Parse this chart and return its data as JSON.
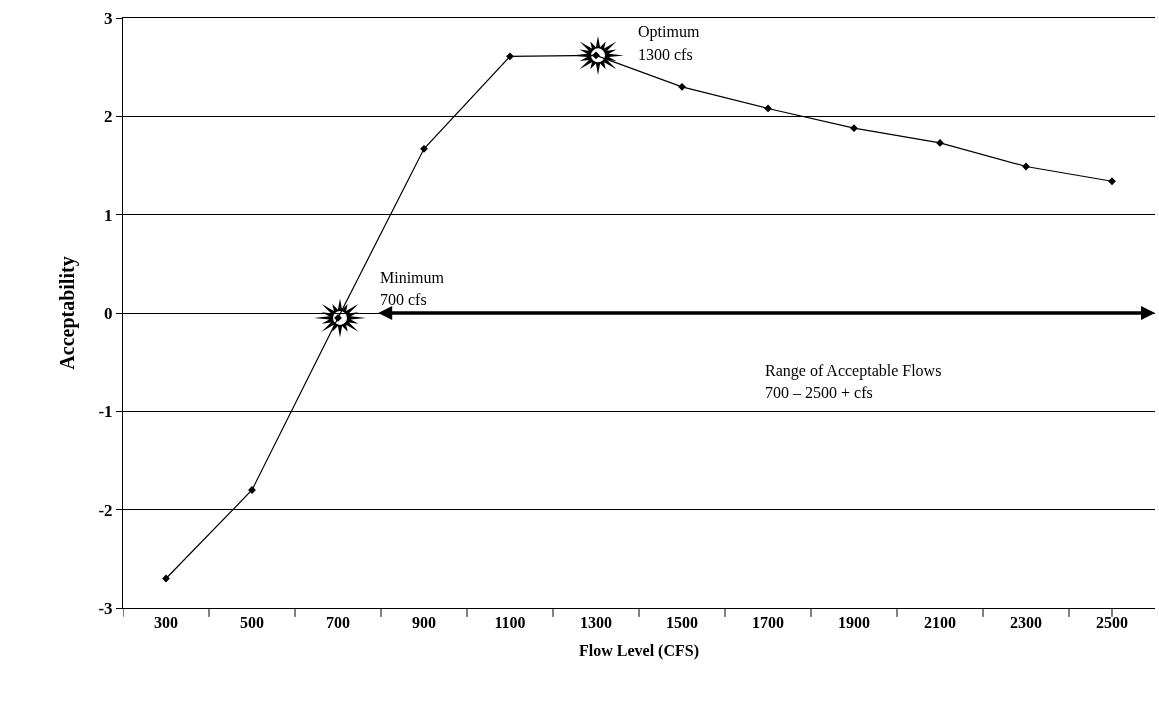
{
  "chart_data": {
    "type": "line",
    "xlabel": "Flow Level (CFS)",
    "ylabel": "Acceptability",
    "categories": [
      "300",
      "500",
      "700",
      "900",
      "1100",
      "1300",
      "1500",
      "1700",
      "1900",
      "2100",
      "2300",
      "2500"
    ],
    "series": [
      {
        "color": "#000000",
        "values": [
          -2.7,
          -1.8,
          -0.05,
          1.67,
          2.61,
          2.62,
          2.3,
          2.08,
          1.88,
          1.73,
          1.49,
          1.34
        ]
      }
    ],
    "ylim": [
      -3,
      3
    ],
    "yticks": [
      -3,
      -2,
      -1,
      0,
      1,
      2,
      3
    ],
    "grid": "y",
    "legend": false,
    "marker": "diamond",
    "line_style": "solid",
    "annotations": [
      {
        "text": "Minimum\n700 cfs",
        "x": "700",
        "y": -0.05
      },
      {
        "text": "Optimum\n1300 cfs",
        "x": "1300",
        "y": 2.62
      },
      "Range of Acceptable Flows\n700 – 2500 + cfs"
    ]
  }
}
